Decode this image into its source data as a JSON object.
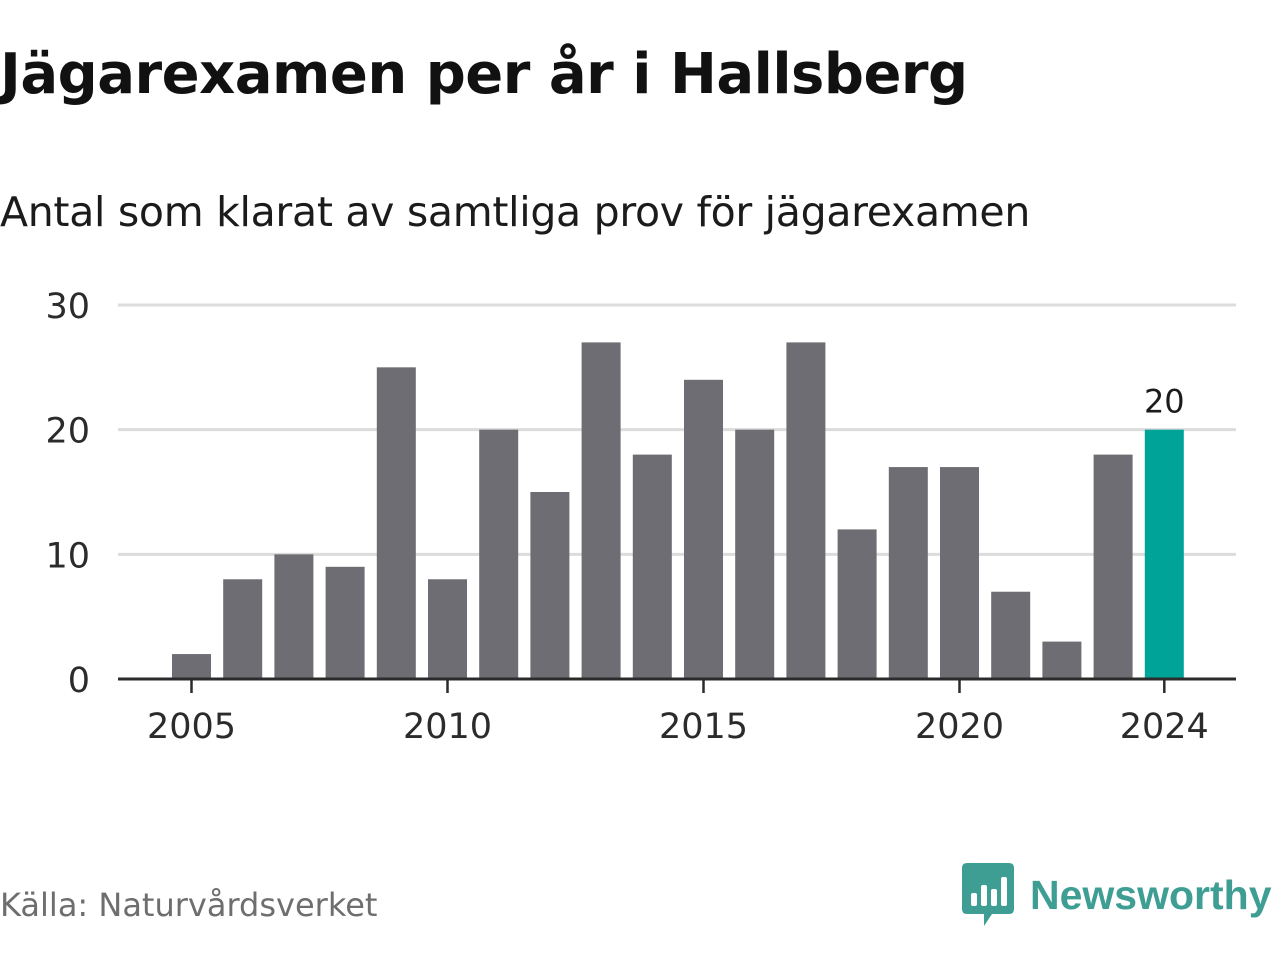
{
  "title": "Jägarexamen per år i Hallsberg",
  "subtitle": "Antal som klarat av samtliga prov för jägarexamen",
  "source": "Källa: Naturvårdsverket",
  "brand": {
    "name": "Newsworthy",
    "color": "#3f9e94"
  },
  "colors": {
    "bar": "#6e6d73",
    "highlight": "#00a398",
    "grid": "#dcdcdc",
    "axis": "#2b2b2b"
  },
  "chart_data": {
    "type": "bar",
    "title": "Jägarexamen per år i Hallsberg",
    "subtitle": "Antal som klarat av samtliga prov för jägarexamen",
    "categories": [
      2005,
      2006,
      2007,
      2008,
      2009,
      2010,
      2011,
      2012,
      2013,
      2014,
      2015,
      2016,
      2017,
      2018,
      2019,
      2020,
      2021,
      2022,
      2023,
      2024
    ],
    "values": [
      2,
      8,
      10,
      9,
      25,
      8,
      20,
      15,
      27,
      18,
      24,
      20,
      27,
      12,
      17,
      17,
      7,
      3,
      18,
      20
    ],
    "highlight": {
      "category": 2024,
      "label": "20"
    },
    "xticks": [
      2005,
      2010,
      2015,
      2020,
      2024
    ],
    "yticks": [
      0,
      10,
      20,
      30
    ],
    "ylim": [
      0,
      30
    ],
    "grid": true,
    "xlabel": "",
    "ylabel": ""
  }
}
